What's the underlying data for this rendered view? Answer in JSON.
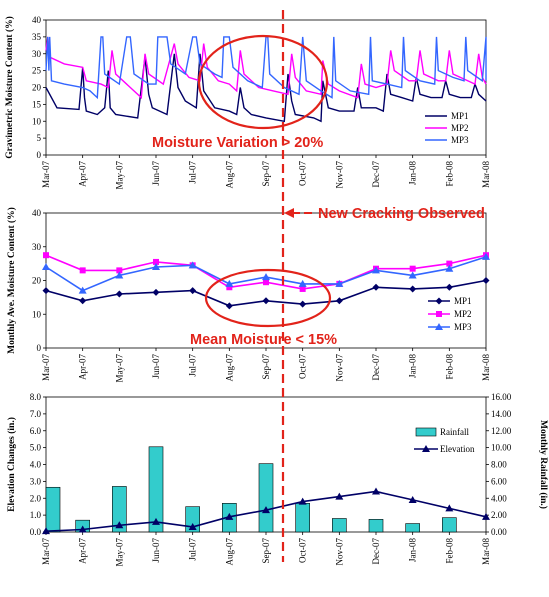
{
  "months": [
    "Mar-07",
    "Apr-07",
    "May-07",
    "Jun-07",
    "Jul-07",
    "Aug-07",
    "Sep-07",
    "Oct-07",
    "Nov-07",
    "Dec-07",
    "Jan-08",
    "Feb-08",
    "Mar-08"
  ],
  "colors": {
    "mp1": "#000066",
    "mp2": "#ff00ff",
    "mp3": "#3366ff",
    "annotation": "#e2231a",
    "rain": "#33cccc",
    "elev": "#000066"
  },
  "annotations": {
    "variation": "Moisture Variation > 20%",
    "cracking": "New Cracking Observed",
    "mean": "Mean Moisture < 15%"
  },
  "chart_data": [
    {
      "type": "line",
      "ylabel": "Gravimetric Moisture Content (%)",
      "ylim": [
        0,
        40
      ],
      "yticks": [
        0,
        5,
        10,
        15,
        20,
        25,
        30,
        35,
        40
      ],
      "legend": "bottom-right",
      "series": [
        {
          "name": "MP1",
          "color": "#000066",
          "points": [
            [
              0,
              20
            ],
            [
              0.3,
              14
            ],
            [
              0.9,
              13.5
            ],
            [
              1.0,
              26
            ],
            [
              1.05,
              17
            ],
            [
              1.1,
              13
            ],
            [
              1.4,
              12
            ],
            [
              1.6,
              14
            ],
            [
              1.7,
              25
            ],
            [
              1.75,
              14
            ],
            [
              1.9,
              12
            ],
            [
              2.5,
              11
            ],
            [
              2.7,
              29
            ],
            [
              2.8,
              18
            ],
            [
              2.9,
              14
            ],
            [
              3.3,
              12
            ],
            [
              3.5,
              30
            ],
            [
              3.6,
              20
            ],
            [
              3.8,
              16
            ],
            [
              4.1,
              14
            ],
            [
              4.2,
              30
            ],
            [
              4.3,
              19
            ],
            [
              4.6,
              14
            ],
            [
              5.0,
              13
            ],
            [
              5.2,
              12
            ],
            [
              5.3,
              20
            ],
            [
              5.4,
              14
            ],
            [
              5.6,
              12
            ],
            [
              6.0,
              11
            ],
            [
              6.5,
              10
            ],
            [
              6.6,
              24
            ],
            [
              6.7,
              16
            ],
            [
              6.8,
              12
            ],
            [
              7.3,
              11
            ],
            [
              7.5,
              10
            ],
            [
              7.55,
              22
            ],
            [
              7.7,
              14
            ],
            [
              8.0,
              13
            ],
            [
              8.4,
              13
            ],
            [
              8.5,
              20
            ],
            [
              8.6,
              14
            ],
            [
              9.0,
              14
            ],
            [
              9.2,
              13
            ],
            [
              9.3,
              24
            ],
            [
              9.4,
              18
            ],
            [
              9.7,
              17
            ],
            [
              10.0,
              16
            ],
            [
              10.1,
              23
            ],
            [
              10.2,
              18
            ],
            [
              10.5,
              17
            ],
            [
              10.8,
              17
            ],
            [
              10.9,
              22
            ],
            [
              11.0,
              18
            ],
            [
              11.3,
              17
            ],
            [
              11.6,
              17
            ],
            [
              11.7,
              21
            ],
            [
              11.8,
              18
            ],
            [
              12.0,
              16
            ],
            [
              12.0,
              16
            ]
          ]
        },
        {
          "name": "MP2",
          "color": "#ff00ff",
          "points": [
            [
              0,
              31
            ],
            [
              0.05,
              35
            ],
            [
              0.1,
              29
            ],
            [
              0.5,
              27
            ],
            [
              1.0,
              26
            ],
            [
              1.1,
              22
            ],
            [
              1.5,
              21
            ],
            [
              1.7,
              20
            ],
            [
              1.8,
              31
            ],
            [
              1.9,
              24
            ],
            [
              2.3,
              20
            ],
            [
              2.6,
              17
            ],
            [
              2.7,
              30
            ],
            [
              2.8,
              24
            ],
            [
              3.2,
              21
            ],
            [
              3.5,
              33
            ],
            [
              3.6,
              27
            ],
            [
              3.9,
              23
            ],
            [
              4.2,
              22
            ],
            [
              4.3,
              33
            ],
            [
              4.4,
              26
            ],
            [
              4.7,
              22
            ],
            [
              5.0,
              21
            ],
            [
              5.2,
              19
            ],
            [
              5.3,
              31
            ],
            [
              5.4,
              24
            ],
            [
              5.8,
              20
            ],
            [
              6.2,
              19
            ],
            [
              6.6,
              18
            ],
            [
              6.7,
              30
            ],
            [
              6.8,
              23
            ],
            [
              7.1,
              19
            ],
            [
              7.5,
              18
            ],
            [
              7.55,
              28
            ],
            [
              7.7,
              21
            ],
            [
              8.0,
              19
            ],
            [
              8.5,
              17
            ],
            [
              8.6,
              27
            ],
            [
              8.7,
              21
            ],
            [
              9.0,
              20
            ],
            [
              9.3,
              21
            ],
            [
              9.4,
              31
            ],
            [
              9.5,
              25
            ],
            [
              9.9,
              22
            ],
            [
              10.1,
              22
            ],
            [
              10.2,
              31
            ],
            [
              10.3,
              24
            ],
            [
              10.7,
              22
            ],
            [
              10.9,
              22
            ],
            [
              11.0,
              31
            ],
            [
              11.1,
              24
            ],
            [
              11.5,
              22
            ],
            [
              11.7,
              21
            ],
            [
              11.8,
              30
            ],
            [
              11.9,
              23
            ],
            [
              12.0,
              21
            ]
          ]
        },
        {
          "name": "MP3",
          "color": "#3366ff",
          "points": [
            [
              0,
              25
            ],
            [
              0.05,
              35
            ],
            [
              0.08,
              25
            ],
            [
              0.1,
              35
            ],
            [
              0.15,
              22
            ],
            [
              0.5,
              21
            ],
            [
              1.0,
              20
            ],
            [
              1.2,
              19
            ],
            [
              1.4,
              17
            ],
            [
              1.5,
              35
            ],
            [
              1.55,
              35
            ],
            [
              1.6,
              24
            ],
            [
              2.0,
              21
            ],
            [
              2.2,
              35
            ],
            [
              2.3,
              35
            ],
            [
              2.4,
              24
            ],
            [
              2.8,
              21
            ],
            [
              3.0,
              21
            ],
            [
              3.05,
              35
            ],
            [
              3.3,
              35
            ],
            [
              3.4,
              27
            ],
            [
              3.8,
              24
            ],
            [
              4.0,
              35
            ],
            [
              4.1,
              35
            ],
            [
              4.2,
              27
            ],
            [
              4.6,
              24
            ],
            [
              4.8,
              23
            ],
            [
              4.85,
              35
            ],
            [
              5.0,
              35
            ],
            [
              5.1,
              26
            ],
            [
              5.5,
              22
            ],
            [
              5.9,
              20
            ],
            [
              6.0,
              35
            ],
            [
              6.05,
              35
            ],
            [
              6.1,
              24
            ],
            [
              6.5,
              20
            ],
            [
              6.9,
              18
            ],
            [
              7.0,
              35
            ],
            [
              7.1,
              22
            ],
            [
              7.5,
              19
            ],
            [
              7.8,
              17
            ],
            [
              7.85,
              35
            ],
            [
              7.9,
              22
            ],
            [
              8.3,
              19
            ],
            [
              8.8,
              18
            ],
            [
              8.85,
              35
            ],
            [
              8.9,
              22
            ],
            [
              9.3,
              21
            ],
            [
              9.7,
              20
            ],
            [
              9.75,
              35
            ],
            [
              9.8,
              25
            ],
            [
              10.2,
              22
            ],
            [
              10.6,
              21
            ],
            [
              10.65,
              35
            ],
            [
              10.7,
              25
            ],
            [
              11.1,
              23
            ],
            [
              11.4,
              22
            ],
            [
              11.45,
              35
            ],
            [
              11.5,
              25
            ],
            [
              11.9,
              22
            ],
            [
              12.0,
              35
            ],
            [
              12.0,
              22
            ]
          ]
        }
      ]
    },
    {
      "type": "line",
      "ylabel": "Monthly Ave. Moisture Content (%)",
      "ylim": [
        0,
        40
      ],
      "yticks": [
        0,
        10,
        20,
        30,
        40
      ],
      "legend": "right",
      "categories": [
        "Mar-07",
        "Apr-07",
        "May-07",
        "Jun-07",
        "Jul-07",
        "Aug-07",
        "Sep-07",
        "Oct-07",
        "Nov-07",
        "Dec-07",
        "Jan-08",
        "Feb-08",
        "Mar-08"
      ],
      "series": [
        {
          "name": "MP1",
          "color": "#000066",
          "marker": "diamond",
          "values": [
            17,
            14,
            16,
            16.5,
            17,
            12.5,
            14,
            13,
            14,
            18,
            17.5,
            18,
            20
          ]
        },
        {
          "name": "MP2",
          "color": "#ff00ff",
          "marker": "square",
          "values": [
            27.5,
            23,
            23,
            25.5,
            24.5,
            18,
            19.5,
            17.5,
            19,
            23.5,
            23.5,
            25,
            27.5
          ]
        },
        {
          "name": "MP3",
          "color": "#3366ff",
          "marker": "triangle",
          "values": [
            24,
            17,
            21.5,
            24,
            24.5,
            19,
            21,
            19,
            19,
            23,
            21.5,
            23.5,
            27
          ]
        }
      ]
    },
    {
      "type": "bar",
      "ylabel": "Elevation Changes (in.)",
      "y2label": "Monthly Rainfall (in.)",
      "ylim": [
        0,
        8
      ],
      "yticks": [
        "0.0",
        "1.0",
        "2.0",
        "3.0",
        "4.0",
        "5.0",
        "6.0",
        "7.0",
        "8.0"
      ],
      "y2lim": [
        0,
        16
      ],
      "y2ticks": [
        "0.00",
        "2.00",
        "4.00",
        "6.00",
        "8.00",
        "10.00",
        "12.00",
        "14.00",
        "16.00"
      ],
      "legend": "top-right",
      "categories": [
        "Mar-07",
        "Apr-07",
        "May-07",
        "Jun-07",
        "Jul-07",
        "Aug-07",
        "Sep-07",
        "Oct-07",
        "Nov-07",
        "Dec-07",
        "Jan-08",
        "Feb-08",
        "Mar-08"
      ],
      "rainfall": {
        "name": "Rainfall",
        "axis": "right",
        "values": [
          5.3,
          1.4,
          5.4,
          10.1,
          3.0,
          3.4,
          8.1,
          3.4,
          1.6,
          1.5,
          1.0,
          1.7,
          null
        ]
      },
      "elevation": {
        "name": "Elevation",
        "axis": "left",
        "values": [
          0.05,
          0.15,
          0.4,
          0.6,
          0.3,
          0.9,
          1.3,
          1.8,
          2.1,
          2.4,
          1.9,
          1.4,
          0.9
        ]
      }
    }
  ]
}
